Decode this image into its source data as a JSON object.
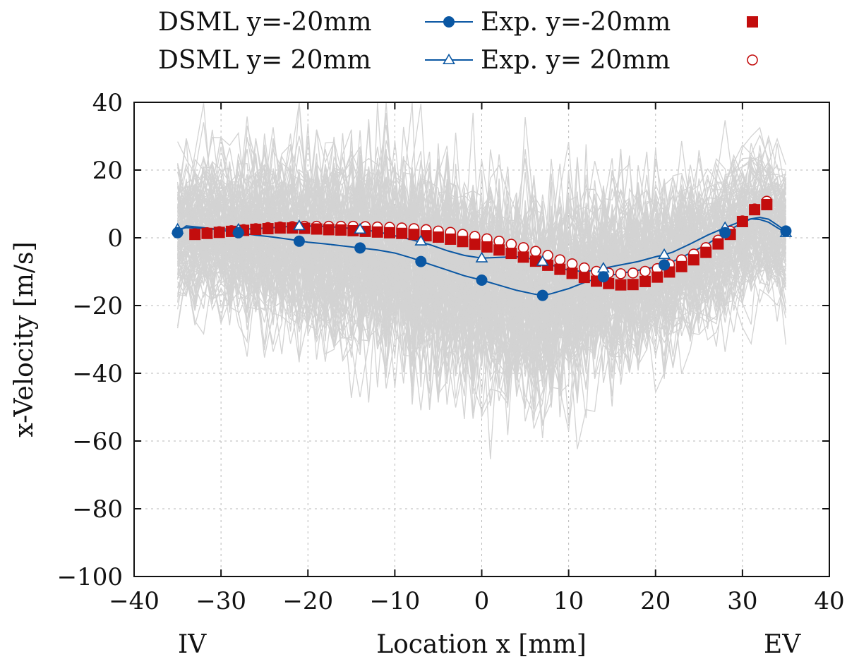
{
  "chart_data": {
    "type": "line",
    "xlabel": "Location x [mm]",
    "ylabel": "x-Velocity [m/s]",
    "xlim": [
      -40,
      40
    ],
    "ylim": [
      -100,
      40
    ],
    "xticks": [
      -40,
      -30,
      -20,
      -10,
      0,
      10,
      20,
      30,
      40
    ],
    "yticks": [
      -100,
      -80,
      -60,
      -40,
      -20,
      0,
      20,
      40
    ],
    "xtick_labels": [
      "−40",
      "−30",
      "−20",
      "−10",
      "0",
      "10",
      "20",
      "30",
      "40"
    ],
    "ytick_labels": [
      "−100",
      "−80",
      "−60",
      "−40",
      "−20",
      "0",
      "20",
      "40"
    ],
    "grid": true,
    "annotations": [
      {
        "text": "IV",
        "x": -33
      },
      {
        "text": "EV",
        "x": 33
      }
    ],
    "colors": {
      "dsml": "#0a57a3",
      "exp": "#c30d0d",
      "ensemble": "#d3d3d3"
    },
    "ensemble": {
      "description_only": false,
      "x_range": [
        -35,
        35
      ],
      "mean_ref": "dsml_neg20"
    },
    "legend": [
      {
        "label": "DSML y=-20mm",
        "series": "dsml_neg20"
      },
      {
        "label": "Exp. y=-20mm",
        "series": "exp_neg20"
      },
      {
        "label": "DSML y= 20mm",
        "series": "dsml_pos20"
      },
      {
        "label": "Exp. y= 20mm",
        "series": "exp_pos20"
      }
    ],
    "series": [
      {
        "id": "dsml_neg20",
        "name": "DSML y=-20mm",
        "marker": "filled-circle",
        "line": true,
        "x": [
          -35,
          -28,
          -21,
          -14,
          -7,
          0,
          7,
          14,
          21,
          28,
          35
        ],
        "y": [
          1.5,
          1.5,
          -1,
          -3,
          -7,
          -12.5,
          -17,
          -11.5,
          -8,
          1.5,
          2
        ],
        "smooth_curve_x": [
          -35,
          -34,
          -32,
          -30,
          -28,
          -26,
          -24,
          -22,
          -20,
          -18,
          -16,
          -14,
          -12,
          -10,
          -8,
          -6,
          -4,
          -2,
          0,
          2,
          4,
          6,
          7,
          8,
          10,
          12,
          14,
          16,
          18,
          20,
          21,
          22,
          24,
          26,
          28,
          30,
          31,
          32,
          33,
          34,
          35
        ],
        "smooth_curve_y": [
          1.5,
          3.5,
          3.0,
          2.2,
          1.5,
          0.8,
          0.2,
          -0.5,
          -1.3,
          -1.8,
          -2.4,
          -3.0,
          -3.6,
          -4.5,
          -6.0,
          -7.8,
          -9.5,
          -11.2,
          -12.5,
          -14.0,
          -15.5,
          -16.6,
          -17.0,
          -16.5,
          -15.0,
          -13.0,
          -11.5,
          -10.5,
          -9.6,
          -8.6,
          -8.0,
          -7.0,
          -4.5,
          -1.8,
          1.5,
          4.5,
          5.6,
          6.0,
          5.5,
          3.8,
          2.0
        ]
      },
      {
        "id": "dsml_pos20",
        "name": "DSML y= 20mm",
        "marker": "open-triangle",
        "line": true,
        "x": [
          -35,
          -28,
          -21,
          -14,
          -7,
          0,
          7,
          14,
          21,
          28,
          35
        ],
        "y": [
          2.5,
          2.5,
          3.5,
          2.5,
          -1,
          -6,
          -7,
          -9,
          -5,
          3,
          1.5
        ],
        "smooth_curve_x": [
          -35,
          -34,
          -32,
          -30,
          -28,
          -26,
          -24,
          -22,
          -20,
          -18,
          -16,
          -14,
          -12,
          -10,
          -8,
          -6,
          -4,
          -2,
          0,
          2,
          4,
          6,
          7,
          8,
          10,
          12,
          14,
          16,
          18,
          20,
          21,
          22,
          24,
          26,
          28,
          30,
          31,
          32,
          33,
          34,
          35
        ],
        "smooth_curve_y": [
          2.5,
          3.0,
          2.8,
          2.6,
          2.5,
          2.7,
          3.0,
          3.4,
          3.5,
          3.4,
          3.0,
          2.5,
          1.8,
          0.6,
          -0.6,
          -2.0,
          -3.8,
          -5.2,
          -6.0,
          -5.8,
          -5.6,
          -6.3,
          -7.0,
          -8.0,
          -9.6,
          -10.0,
          -9.0,
          -8.0,
          -7.0,
          -5.6,
          -5.0,
          -4.2,
          -1.8,
          0.8,
          3.0,
          5.0,
          5.6,
          5.4,
          4.6,
          3.0,
          1.5
        ]
      },
      {
        "id": "exp_neg20",
        "name": "Exp. y=-20mm",
        "marker": "filled-square",
        "line": false,
        "x": [
          -33,
          -31.6,
          -30.2,
          -28.8,
          -27.4,
          -26,
          -24.6,
          -23.2,
          -21.8,
          -20.4,
          -19,
          -17.6,
          -16.2,
          -14.8,
          -13.4,
          -12,
          -10.6,
          -9.2,
          -7.8,
          -6.4,
          -5,
          -3.6,
          -2.2,
          -0.8,
          0.6,
          2,
          3.4,
          4.8,
          6.2,
          7.6,
          9,
          10.4,
          11.8,
          13.2,
          14.6,
          16,
          17.4,
          18.8,
          20.2,
          21.6,
          23,
          24.4,
          25.8,
          27.2,
          28.6,
          30,
          31.4,
          32.8
        ],
        "y": [
          1,
          1.3,
          1.6,
          1.9,
          2.2,
          2.5,
          2.7,
          2.9,
          2.9,
          2.8,
          2.6,
          2.4,
          2.3,
          2.1,
          1.9,
          1.7,
          1.5,
          1.3,
          1.0,
          0.6,
          0.2,
          -0.4,
          -1.1,
          -1.9,
          -2.7,
          -3.6,
          -4.6,
          -5.7,
          -6.9,
          -8.1,
          -9.3,
          -10.5,
          -11.7,
          -12.8,
          -13.5,
          -13.9,
          -13.8,
          -12.9,
          -11.6,
          -10.1,
          -8.5,
          -6.5,
          -4.3,
          -1.8,
          1.0,
          4.8,
          8.3,
          9.8
        ]
      },
      {
        "id": "exp_pos20",
        "name": "Exp. y= 20mm",
        "marker": "open-circle",
        "line": false,
        "x": [
          -33,
          -31.6,
          -30.2,
          -28.8,
          -27.4,
          -26,
          -24.6,
          -23.2,
          -21.8,
          -20.4,
          -19,
          -17.6,
          -16.2,
          -14.8,
          -13.4,
          -12,
          -10.6,
          -9.2,
          -7.8,
          -6.4,
          -5,
          -3.6,
          -2.2,
          -0.8,
          0.6,
          2,
          3.4,
          4.8,
          6.2,
          7.6,
          9,
          10.4,
          11.8,
          13.2,
          14.6,
          16,
          17.4,
          18.8,
          20.2,
          21.6,
          23,
          24.4,
          25.8,
          27.2,
          28.6,
          30,
          31.4,
          32.8
        ],
        "y": [
          1.2,
          1.5,
          1.8,
          2.1,
          2.4,
          2.7,
          3.0,
          3.2,
          3.3,
          3.4,
          3.4,
          3.4,
          3.4,
          3.4,
          3.3,
          3.2,
          3.1,
          2.9,
          2.7,
          2.4,
          2.0,
          1.6,
          1.0,
          0.4,
          -0.3,
          -1.0,
          -1.9,
          -2.9,
          -4.0,
          -5.2,
          -6.5,
          -7.7,
          -8.9,
          -9.9,
          -10.4,
          -10.6,
          -10.4,
          -9.9,
          -9.1,
          -7.9,
          -6.5,
          -4.8,
          -2.9,
          -0.7,
          1.9,
          5.0,
          8.5,
          10.8
        ]
      }
    ]
  }
}
